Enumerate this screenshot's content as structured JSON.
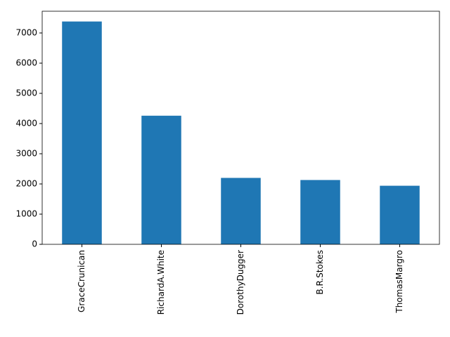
{
  "chart_data": {
    "type": "bar",
    "categories": [
      "GraceCrunican",
      "RichardA.White",
      "DorothyDugger",
      "B.R.Stokes",
      "ThomasMargro"
    ],
    "values": [
      7380,
      4260,
      2200,
      2130,
      1940
    ],
    "color": "#1f77b4",
    "ylim": [
      0,
      7720
    ],
    "yticks": [
      0,
      1000,
      2000,
      3000,
      4000,
      5000,
      6000,
      7000
    ],
    "grid": false
  }
}
